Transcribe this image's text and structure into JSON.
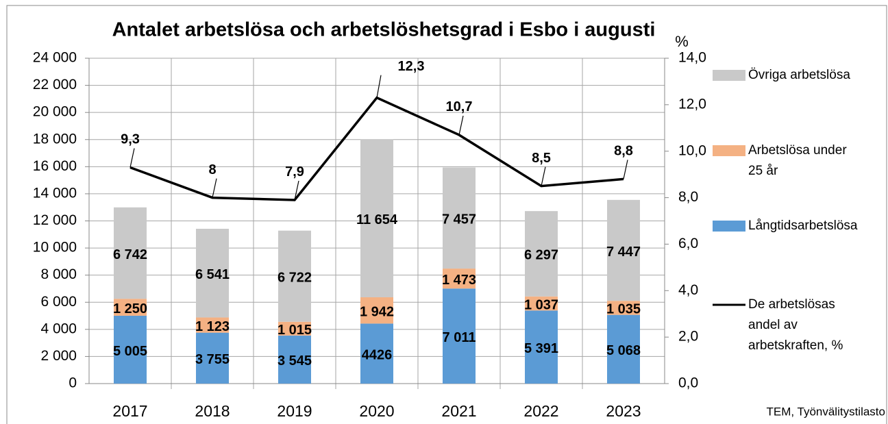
{
  "chart_data": {
    "type": "bar_line",
    "title": "Antalet arbetslösa och arbetslöshetsgrad i Esbo i augusti",
    "y2_label": "%",
    "source": "TEM, Työnvälitystilasto",
    "categories": [
      "2017",
      "2018",
      "2019",
      "2020",
      "2021",
      "2022",
      "2023"
    ],
    "stacked": true,
    "grid": true,
    "legend": "right",
    "series": [
      {
        "name": "Långtidsarbetslösa",
        "color": "#5b9bd5",
        "values": [
          5005,
          3755,
          3545,
          4426,
          7011,
          5391,
          5068
        ],
        "value_labels": [
          "5 005",
          "3 755",
          "3 545",
          "4426",
          "7 011",
          "5 391",
          "5 068"
        ]
      },
      {
        "name": "Arbetslösa under 25 år",
        "color": "#f4b183",
        "values": [
          1250,
          1123,
          1015,
          1942,
          1473,
          1037,
          1035
        ],
        "value_labels": [
          "1 250",
          "1 123",
          "1 015",
          "1 942",
          "1 473",
          "1 037",
          "1 035"
        ]
      },
      {
        "name": "Övriga arbetslösa",
        "color": "#c9c9c9",
        "values": [
          6742,
          6541,
          6722,
          11654,
          7457,
          6297,
          7447
        ],
        "value_labels": [
          "6 742",
          "6 541",
          "6 722",
          "11 654",
          "7 457",
          "6 297",
          "7 447"
        ]
      },
      {
        "name": "De arbetslösas andel av arbetskraften, %",
        "color": "#000000",
        "type": "line",
        "axis": "y2",
        "values": [
          9.3,
          8,
          7.9,
          12.3,
          10.7,
          8.5,
          8.8
        ],
        "value_labels": [
          "9,3",
          "8",
          "7,9",
          "12,3",
          "10,7",
          "8,5",
          "8,8"
        ]
      }
    ],
    "ylim": [
      0,
      24000
    ],
    "yticks": [
      0,
      {
        "value": 2000,
        "label": "2 000"
      },
      {
        "value": 4000,
        "label": "4 000"
      },
      {
        "value": 6000,
        "label": "6 000"
      },
      {
        "value": 8000,
        "label": "8 000"
      },
      {
        "value": 10000,
        "label": "10 000"
      },
      {
        "value": 12000,
        "label": "12 000"
      },
      {
        "value": 14000,
        "label": "14 000"
      },
      {
        "value": 16000,
        "label": "16 000"
      },
      {
        "value": 18000,
        "label": "18 000"
      },
      {
        "value": 20000,
        "label": "20 000"
      },
      {
        "value": 22000,
        "label": "22 000"
      },
      {
        "value": 24000,
        "label": "24 000"
      }
    ],
    "y2lim": [
      0,
      14
    ],
    "y2ticks": [
      {
        "value": 0,
        "label": "0,0"
      },
      {
        "value": 2,
        "label": "2,0"
      },
      {
        "value": 4,
        "label": "4,0"
      },
      {
        "value": 6,
        "label": "6,0"
      },
      {
        "value": 8,
        "label": "8,0"
      },
      {
        "value": 10,
        "label": "10,0"
      },
      {
        "value": 12,
        "label": "12,0"
      },
      {
        "value": 14,
        "label": "14,0"
      }
    ]
  }
}
